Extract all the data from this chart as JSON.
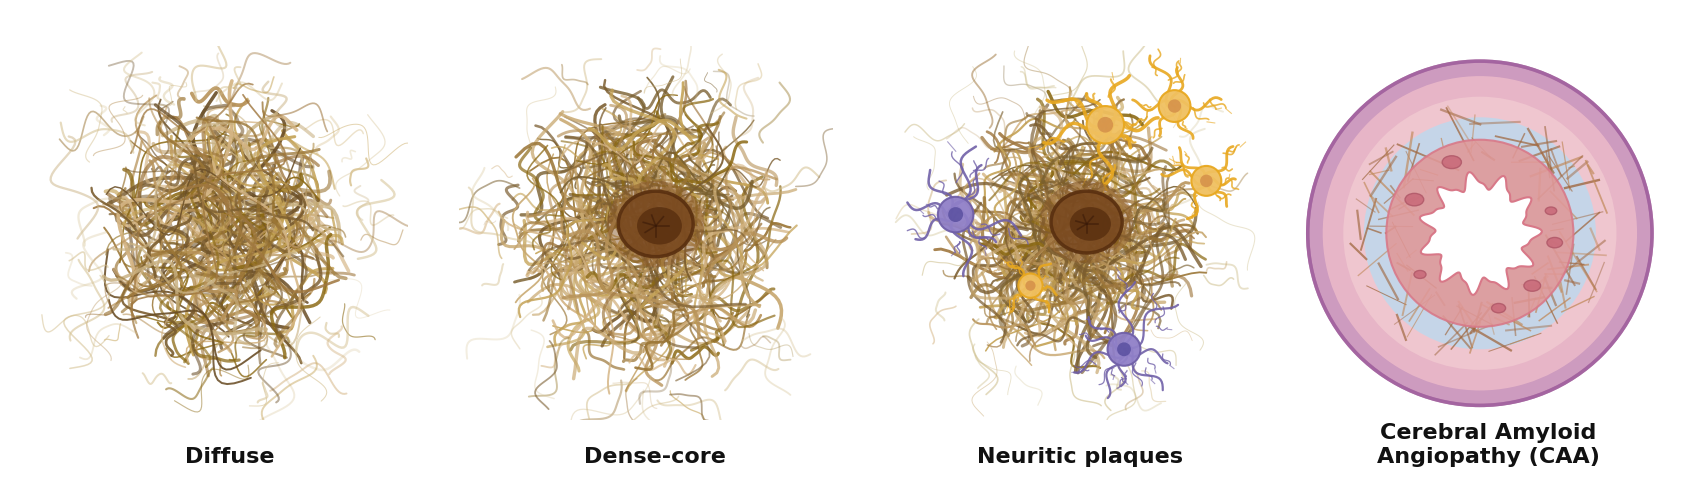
{
  "background_color": "#ffffff",
  "labels": [
    "Diffuse",
    "Dense-core",
    "Neuritic plaques",
    "Cerebral Amyloid\nAngiopathy (CAA)"
  ],
  "label_fontsize": 16,
  "label_fontweight": "bold",
  "fiber_colors_diffuse": [
    "#8B6914",
    "#A07840",
    "#C4A255",
    "#7A5C2E",
    "#B8935A",
    "#D4B483",
    "#6B4F28",
    "#C8B080",
    "#9A7535"
  ],
  "fiber_colors_dense": [
    "#8B6914",
    "#A07840",
    "#C4A255",
    "#7A5C2E",
    "#B8935A",
    "#D4B483",
    "#C8A870",
    "#9A7535",
    "#7A6030"
  ],
  "core_color": "#5A3010",
  "core_inner_color": "#8B5A2B",
  "core_mid_color": "#7A4A20",
  "astro_orange_fill": "#F0C060",
  "astro_orange_edge": "#E8A820",
  "astro_orange_nucleus": "#D4904A",
  "astro_purple_fill": "#9080C8",
  "astro_purple_edge": "#7060A8",
  "astro_purple_nucleus": "#5A50A0",
  "vessel_outermost": "#C890B8",
  "vessel_outer_fill": "#EAB8C8",
  "vessel_pink_mid": "#F0C8D0",
  "vessel_blue": "#C0D8EC",
  "vessel_red_inner": "#D87888",
  "vessel_red_fill": "#E09898",
  "vessel_fiber": "#A06840",
  "vessel_fiber2": "#C08858",
  "vessel_red_blob": "#C86878",
  "vessel_white": "#FFFFFF"
}
